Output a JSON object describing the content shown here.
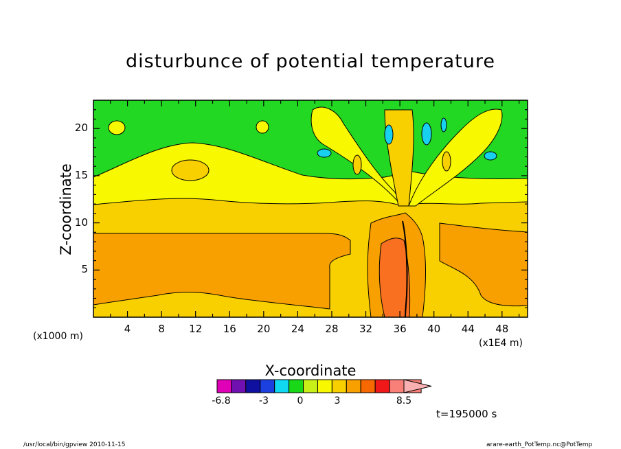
{
  "chart_data": {
    "type": "contour",
    "title": "disturbunce of potential temperature",
    "xlabel": "X-coordinate",
    "ylabel": "Z-coordinate",
    "x_unit": "(x1000 m)",
    "x_multiplier_label": "(x1E4 m)",
    "xlim": [
      0,
      51
    ],
    "ylim": [
      0,
      23
    ],
    "x_ticks": [
      "4",
      "8",
      "12",
      "16",
      "20",
      "24",
      "28",
      "32",
      "36",
      "40",
      "44",
      "48"
    ],
    "y_ticks": [
      "5",
      "10",
      "15",
      "20"
    ],
    "colorbar": {
      "tick_labels": [
        "-6.8",
        "-3",
        "0",
        "3",
        "8.5"
      ],
      "colors": [
        "#e000b8",
        "#7010b0",
        "#1010a0",
        "#1c40e0",
        "#10d8f0",
        "#18d818",
        "#c8f018",
        "#f8f800",
        "#f8d000",
        "#f8a000",
        "#f86800",
        "#f01818",
        "#f88078",
        "#f8b0b0"
      ]
    },
    "colors": {
      "green": "#22d822",
      "yellow": "#f8f800",
      "lightyellow": "#e8f050",
      "gold": "#f8d000",
      "orange": "#f8a000",
      "darkorange": "#f87020",
      "cyan": "#18d0f0"
    },
    "time_label": "t=195000 s"
  },
  "footer": {
    "left": "/usr/local/bin/gpview  2010-11-15",
    "right": "arare-earth_PotTemp.nc@PotTemp"
  }
}
